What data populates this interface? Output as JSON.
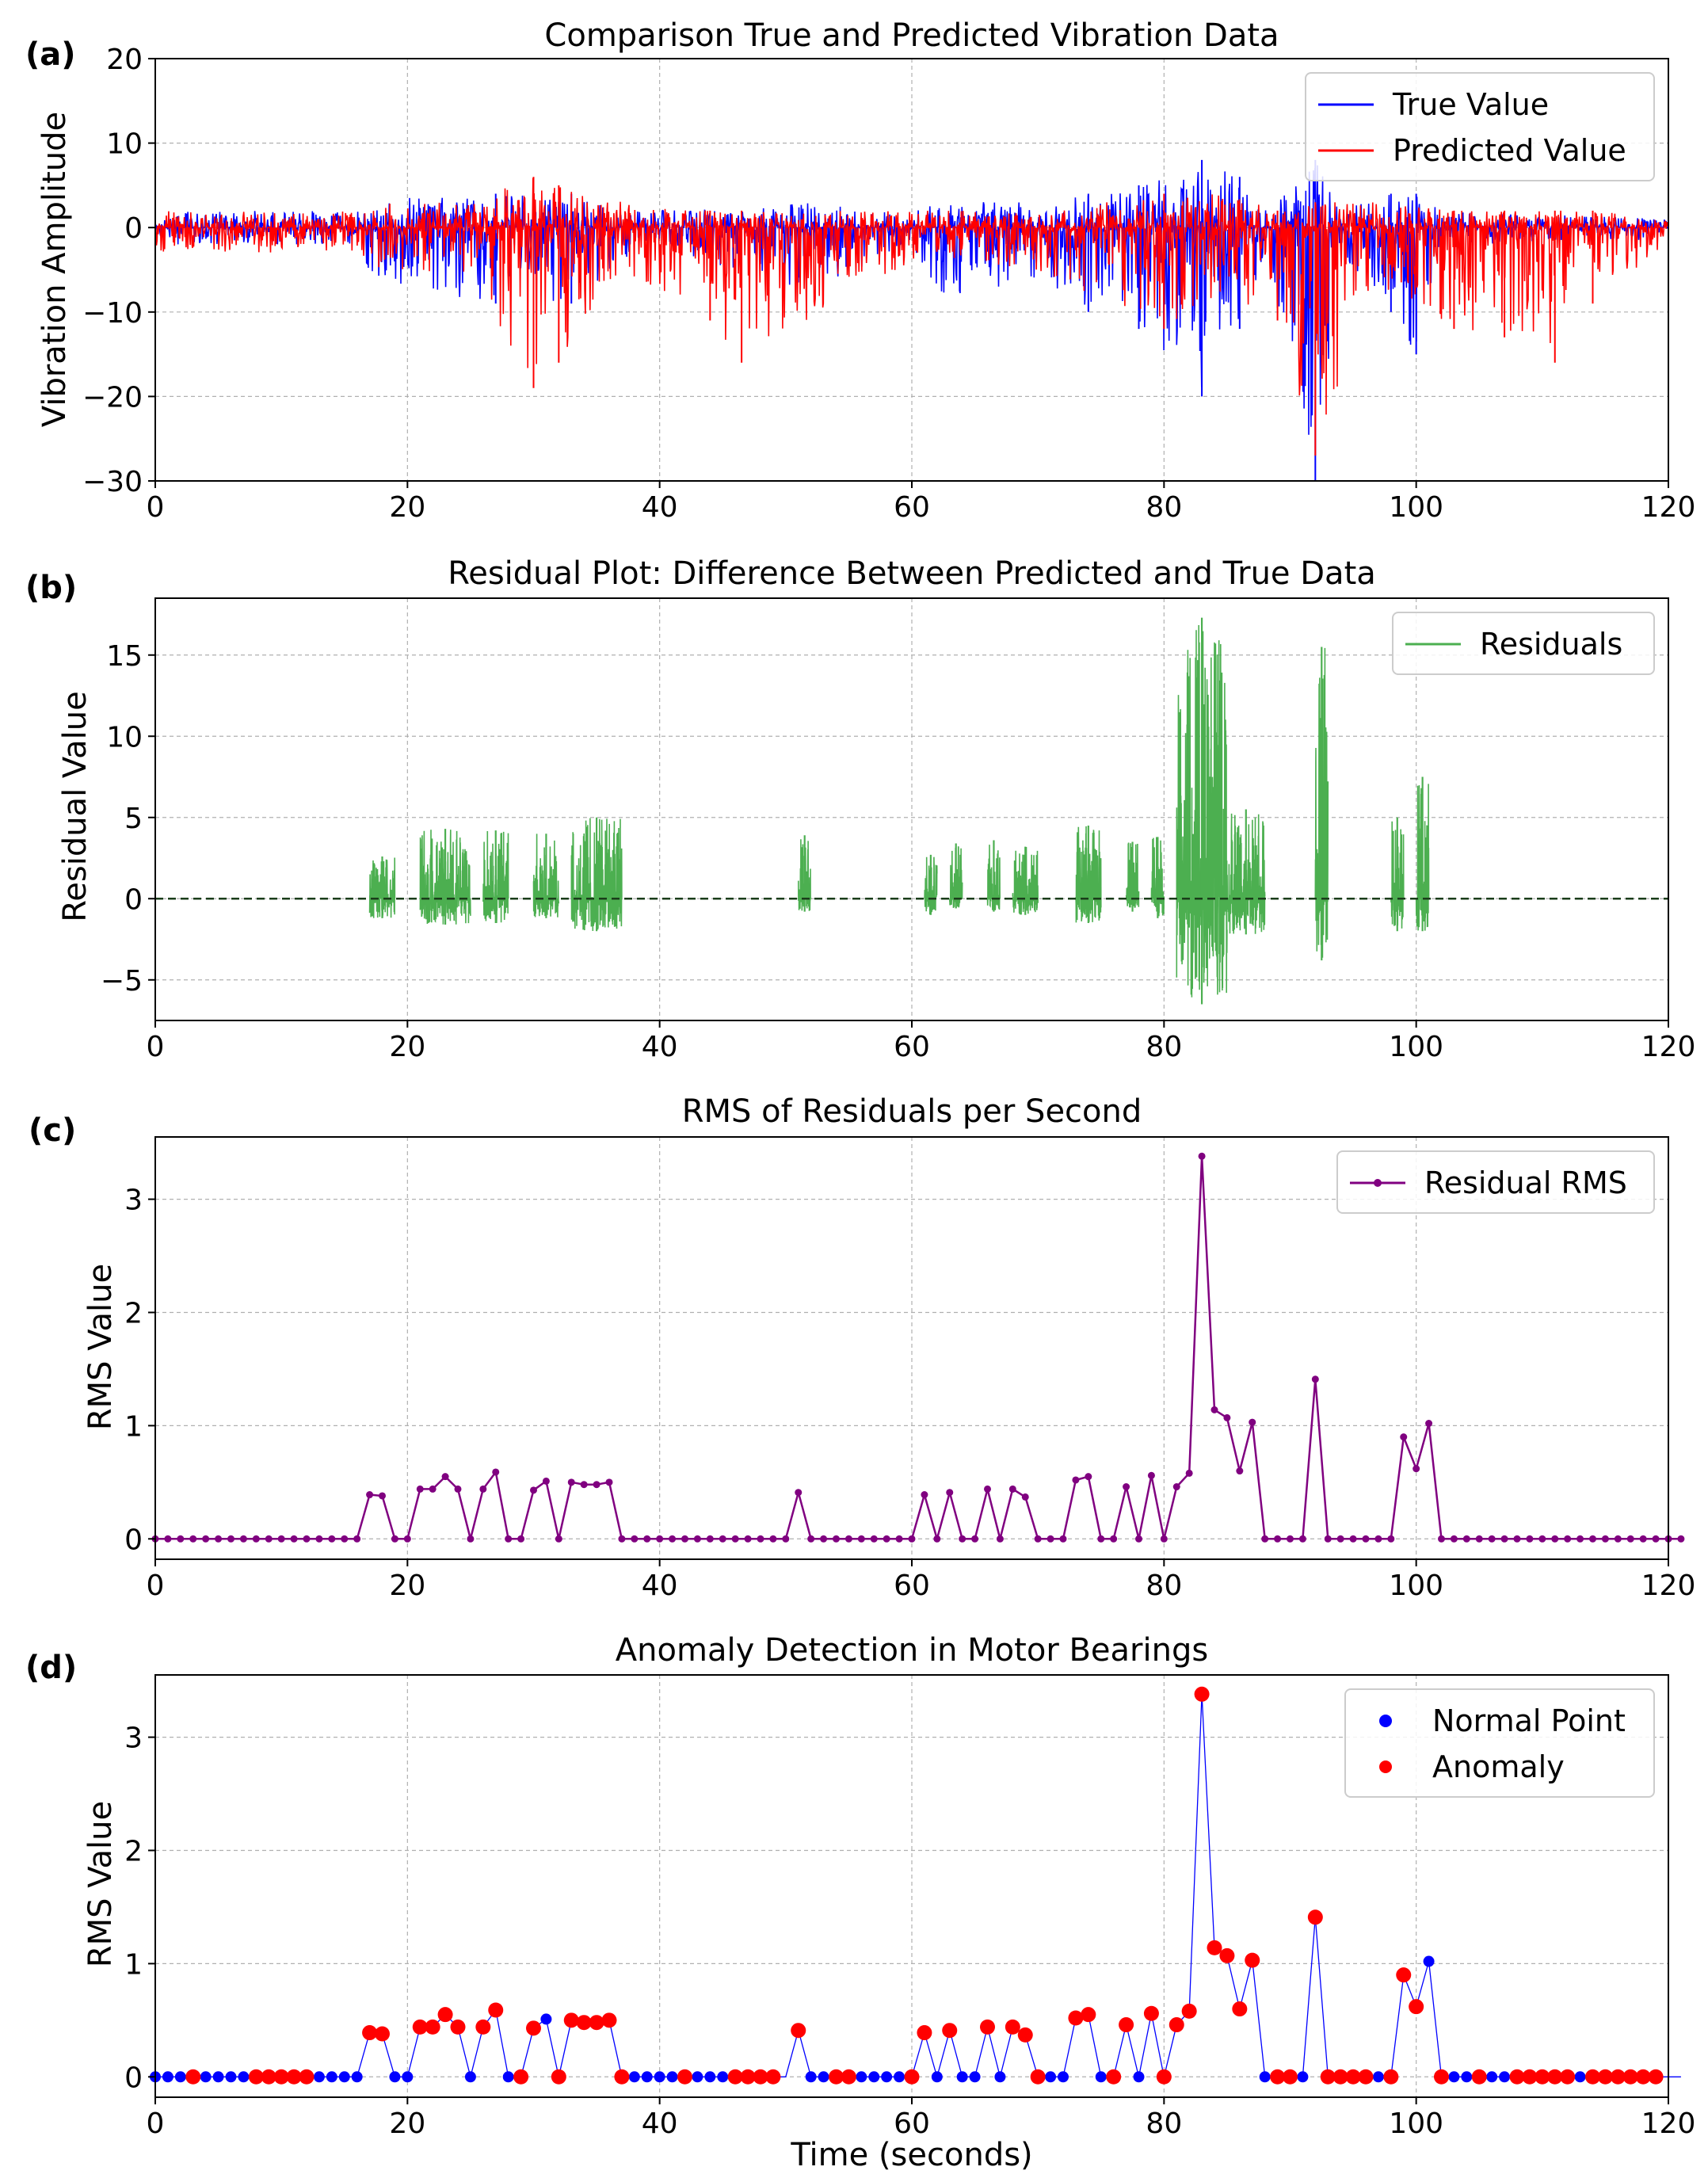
{
  "figure": {
    "panels": [
      {
        "letter": "(a)",
        "title": "Comparison True and Predicted Vibration Data",
        "ylabel": "Vibration Amplitude",
        "xlabel": ""
      },
      {
        "letter": "(b)",
        "title": "Residual Plot: Difference Between Predicted and True Data",
        "ylabel": "Residual Value",
        "xlabel": ""
      },
      {
        "letter": "(c)",
        "title": "RMS of Residuals per Second",
        "ylabel": "RMS Value",
        "xlabel": ""
      },
      {
        "letter": "(d)",
        "title": "Anomaly Detection in Motor Bearings",
        "ylabel": "RMS Value",
        "xlabel": "Time (seconds)"
      }
    ]
  },
  "chart_data": [
    {
      "type": "line",
      "title": "Comparison True and Predicted Vibration Data",
      "xlabel": "",
      "ylabel": "Vibration Amplitude",
      "xlim": [
        0,
        120
      ],
      "ylim": [
        -30,
        20
      ],
      "xticks": [
        0,
        20,
        40,
        60,
        80,
        100,
        120
      ],
      "yticks": [
        -30,
        -20,
        -10,
        0,
        10,
        20
      ],
      "grid": true,
      "legend_position": "top-right",
      "series": [
        {
          "name": "True Value",
          "color": "#0000ff",
          "envelope": [
            {
              "x": 0,
              "min": -2,
              "max": 2
            },
            {
              "x": 16,
              "min": -2,
              "max": 2
            },
            {
              "x": 17,
              "min": -6,
              "max": 3
            },
            {
              "x": 21,
              "min": -8,
              "max": 4
            },
            {
              "x": 27,
              "min": -9,
              "max": 4
            },
            {
              "x": 33,
              "min": -9,
              "max": 4
            },
            {
              "x": 37,
              "min": -4,
              "max": 2
            },
            {
              "x": 40,
              "min": -2,
              "max": 2
            },
            {
              "x": 51,
              "min": -8,
              "max": 3
            },
            {
              "x": 60,
              "min": -2,
              "max": 2
            },
            {
              "x": 62,
              "min": -8,
              "max": 3
            },
            {
              "x": 70,
              "min": -7,
              "max": 3
            },
            {
              "x": 74,
              "min": -10,
              "max": 4
            },
            {
              "x": 78,
              "min": -12,
              "max": 5
            },
            {
              "x": 83,
              "min": -20,
              "max": 8
            },
            {
              "x": 86,
              "min": -12,
              "max": 6
            },
            {
              "x": 88,
              "min": -4,
              "max": 2
            },
            {
              "x": 92,
              "min": -30,
              "max": 8
            },
            {
              "x": 94,
              "min": -3,
              "max": 2
            },
            {
              "x": 98,
              "min": -10,
              "max": 4
            },
            {
              "x": 100,
              "min": -15,
              "max": 4
            },
            {
              "x": 102,
              "min": -2,
              "max": 2
            },
            {
              "x": 120,
              "min": -1.5,
              "max": 1
            }
          ]
        },
        {
          "name": "Predicted Value",
          "color": "#ff0000",
          "envelope": [
            {
              "x": 0,
              "min": -3,
              "max": 2
            },
            {
              "x": 16,
              "min": -3,
              "max": 2
            },
            {
              "x": 18,
              "min": -5,
              "max": 3
            },
            {
              "x": 25,
              "min": -6,
              "max": 3
            },
            {
              "x": 30,
              "min": -19,
              "max": 6
            },
            {
              "x": 32,
              "min": -16,
              "max": 5
            },
            {
              "x": 37,
              "min": -5,
              "max": 3
            },
            {
              "x": 44,
              "min": -11,
              "max": 2
            },
            {
              "x": 46.5,
              "min": -16,
              "max": 2
            },
            {
              "x": 55,
              "min": -8,
              "max": 2
            },
            {
              "x": 60,
              "min": -4,
              "max": 2
            },
            {
              "x": 70,
              "min": -5,
              "max": 2
            },
            {
              "x": 80,
              "min": -12,
              "max": 4
            },
            {
              "x": 85,
              "min": -8,
              "max": 4
            },
            {
              "x": 89,
              "min": -11,
              "max": 2
            },
            {
              "x": 92,
              "min": -27,
              "max": 3
            },
            {
              "x": 97,
              "min": -8,
              "max": 3
            },
            {
              "x": 103,
              "min": -12,
              "max": 2
            },
            {
              "x": 107,
              "min": -13,
              "max": 2
            },
            {
              "x": 111,
              "min": -16,
              "max": 2
            },
            {
              "x": 114,
              "min": -9,
              "max": 2
            },
            {
              "x": 120,
              "min": -2,
              "max": 1
            }
          ]
        }
      ]
    },
    {
      "type": "line",
      "title": "Residual Plot: Difference Between Predicted and True Data",
      "xlabel": "",
      "ylabel": "Residual Value",
      "xlim": [
        0,
        120
      ],
      "ylim": [
        -7.5,
        18.5
      ],
      "xticks": [
        0,
        20,
        40,
        60,
        80,
        100,
        120
      ],
      "yticks": [
        -5,
        0,
        5,
        10,
        15
      ],
      "grid": true,
      "legend_position": "top-right",
      "zero_line": true,
      "series": [
        {
          "name": "Residuals",
          "color": "#4caf50",
          "bursts": [
            {
              "start": 17,
              "end": 19,
              "min": -1.2,
              "max": 2.6
            },
            {
              "start": 21,
              "end": 25,
              "min": -1.6,
              "max": 4.3
            },
            {
              "start": 26,
              "end": 28,
              "min": -1.5,
              "max": 4.2
            },
            {
              "start": 30,
              "end": 32,
              "min": -1.2,
              "max": 4.0
            },
            {
              "start": 33,
              "end": 37,
              "min": -2.0,
              "max": 5.0
            },
            {
              "start": 51,
              "end": 52,
              "min": -0.8,
              "max": 3.9
            },
            {
              "start": 61,
              "end": 62,
              "min": -1.0,
              "max": 2.7
            },
            {
              "start": 63,
              "end": 64,
              "min": -0.6,
              "max": 3.4
            },
            {
              "start": 66,
              "end": 67,
              "min": -0.8,
              "max": 3.6
            },
            {
              "start": 68,
              "end": 70,
              "min": -1.0,
              "max": 3.2
            },
            {
              "start": 73,
              "end": 75,
              "min": -1.5,
              "max": 4.5
            },
            {
              "start": 77,
              "end": 78,
              "min": -0.8,
              "max": 3.5
            },
            {
              "start": 79,
              "end": 80,
              "min": -1.2,
              "max": 3.8
            },
            {
              "start": 81,
              "end": 85,
              "min": -6.5,
              "max": 17.3
            },
            {
              "start": 85,
              "end": 88,
              "min": -2.2,
              "max": 5.5
            },
            {
              "start": 92,
              "end": 93,
              "min": -3.8,
              "max": 15.5
            },
            {
              "start": 98,
              "end": 99,
              "min": -2.0,
              "max": 5.0
            },
            {
              "start": 100,
              "end": 101,
              "min": -2.0,
              "max": 7.5
            }
          ]
        }
      ]
    },
    {
      "type": "line",
      "title": "RMS of Residuals per Second",
      "xlabel": "",
      "ylabel": "RMS Value",
      "xlim": [
        0,
        120
      ],
      "ylim": [
        -0.18,
        3.55
      ],
      "xticks": [
        0,
        20,
        40,
        60,
        80,
        100,
        120
      ],
      "yticks": [
        0,
        1,
        2,
        3
      ],
      "grid": true,
      "legend_position": "top-right",
      "series": [
        {
          "name": "Residual RMS",
          "color": "#800080",
          "x_start": 0,
          "x_step": 1,
          "values": [
            0,
            0,
            0,
            0,
            0,
            0,
            0,
            0,
            0,
            0,
            0,
            0,
            0,
            0,
            0,
            0,
            0,
            0.39,
            0.38,
            0,
            0,
            0.44,
            0.44,
            0.55,
            0.44,
            0,
            0.44,
            0.59,
            0,
            0,
            0.43,
            0.51,
            0,
            0.5,
            0.48,
            0.48,
            0.5,
            0,
            0,
            0,
            0,
            0,
            0,
            0,
            0,
            0,
            0,
            0,
            0,
            0,
            0,
            0.41,
            0,
            0,
            0,
            0,
            0,
            0,
            0,
            0,
            0,
            0.39,
            0,
            0.41,
            0,
            0,
            0.44,
            0,
            0.44,
            0.37,
            0,
            0,
            0,
            0.52,
            0.55,
            0,
            0,
            0.46,
            0,
            0.56,
            0,
            0.46,
            0.58,
            3.38,
            1.14,
            1.07,
            0.6,
            1.03,
            0,
            0,
            0,
            0,
            1.41,
            0,
            0,
            0,
            0,
            0,
            0,
            0.9,
            0.62,
            1.02,
            0,
            0,
            0,
            0,
            0,
            0,
            0,
            0,
            0,
            0,
            0,
            0,
            0,
            0,
            0,
            0,
            0,
            0,
            0,
            0
          ]
        }
      ]
    },
    {
      "type": "scatter",
      "title": "Anomaly Detection in Motor Bearings",
      "xlabel": "Time (seconds)",
      "ylabel": "RMS Value",
      "xlim": [
        0,
        120
      ],
      "ylim": [
        -0.18,
        3.55
      ],
      "xticks": [
        0,
        20,
        40,
        60,
        80,
        100,
        120
      ],
      "yticks": [
        0,
        1,
        2,
        3
      ],
      "grid": true,
      "legend_position": "top-right",
      "line_color": "#0000ff",
      "series": [
        {
          "name": "Normal Point",
          "color": "#0000ff",
          "x": [
            0,
            1,
            2,
            4,
            5,
            6,
            7,
            13,
            14,
            15,
            16,
            19,
            20,
            25,
            28,
            31,
            38,
            39,
            40,
            41,
            43,
            44,
            45,
            52,
            53,
            56,
            57,
            58,
            59,
            62,
            64,
            65,
            67,
            71,
            72,
            75,
            78,
            88,
            91,
            97,
            101,
            103,
            104,
            106,
            107,
            113
          ]
        },
        {
          "name": "Anomaly",
          "color": "#ff0000",
          "x": [
            3,
            8,
            9,
            10,
            11,
            12,
            17,
            18,
            21,
            22,
            23,
            24,
            26,
            27,
            29,
            30,
            32,
            33,
            34,
            35,
            36,
            37,
            42,
            46,
            47,
            48,
            49,
            51,
            54,
            55,
            60,
            61,
            63,
            66,
            68,
            69,
            70,
            73,
            74,
            76,
            77,
            79,
            80,
            81,
            82,
            83,
            84,
            85,
            86,
            87,
            89,
            90,
            92,
            93,
            94,
            95,
            96,
            98,
            99,
            100,
            102,
            105,
            108,
            109,
            110,
            111,
            112,
            114,
            115,
            116,
            117,
            118,
            119
          ]
        }
      ]
    }
  ]
}
